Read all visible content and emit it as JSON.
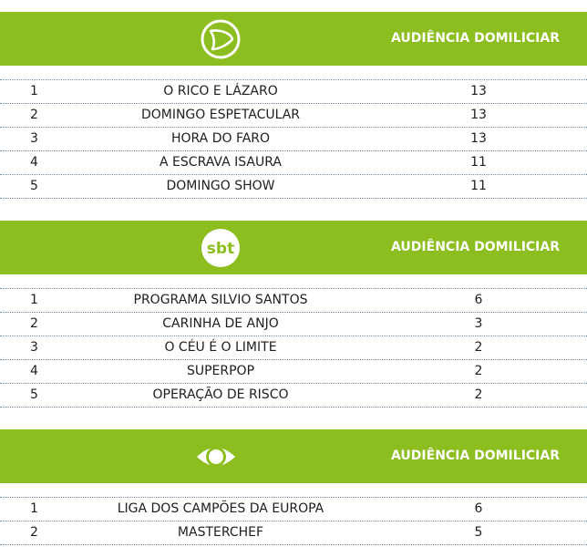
{
  "colors": {
    "header_bg": "#8cbe1f",
    "header_text": "#ffffff",
    "row_text": "#1e1e1e",
    "divider": "#6f8aa0"
  },
  "sections": [
    {
      "logo_icon": "record-tv-logo-icon",
      "audience_label": "AUDIÊNCIA DOMILICIAR",
      "rows": [
        {
          "rank": "1",
          "name": "O RICO E LÁZARO",
          "value": "13"
        },
        {
          "rank": "2",
          "name": "DOMINGO ESPETACULAR",
          "value": "13"
        },
        {
          "rank": "3",
          "name": "HORA DO FARO",
          "value": "13"
        },
        {
          "rank": "4",
          "name": "A ESCRAVA ISAURA",
          "value": "11"
        },
        {
          "rank": "5",
          "name": "DOMINGO SHOW",
          "value": "11"
        }
      ]
    },
    {
      "logo_icon": "sbt-logo-icon",
      "logo_text": "sbt",
      "audience_label": "AUDIÊNCIA DOMILICIAR",
      "rows": [
        {
          "rank": "1",
          "name": "PROGRAMA SILVIO SANTOS",
          "value": "6"
        },
        {
          "rank": "2",
          "name": "CARINHA DE ANJO",
          "value": "3"
        },
        {
          "rank": "3",
          "name": "O CÉU É O LIMITE",
          "value": "2"
        },
        {
          "rank": "4",
          "name": "SUPERPOP",
          "value": "2"
        },
        {
          "rank": "5",
          "name": "OPERAÇÃO DE RISCO",
          "value": "2"
        }
      ]
    },
    {
      "logo_icon": "band-eye-logo-icon",
      "audience_label": "AUDIÊNCIA DOMILICIAR",
      "rows": [
        {
          "rank": "1",
          "name": "LIGA DOS CAMPÕES DA EUROPA",
          "value": "6"
        },
        {
          "rank": "2",
          "name": "MASTERCHEF",
          "value": "5"
        }
      ]
    }
  ]
}
